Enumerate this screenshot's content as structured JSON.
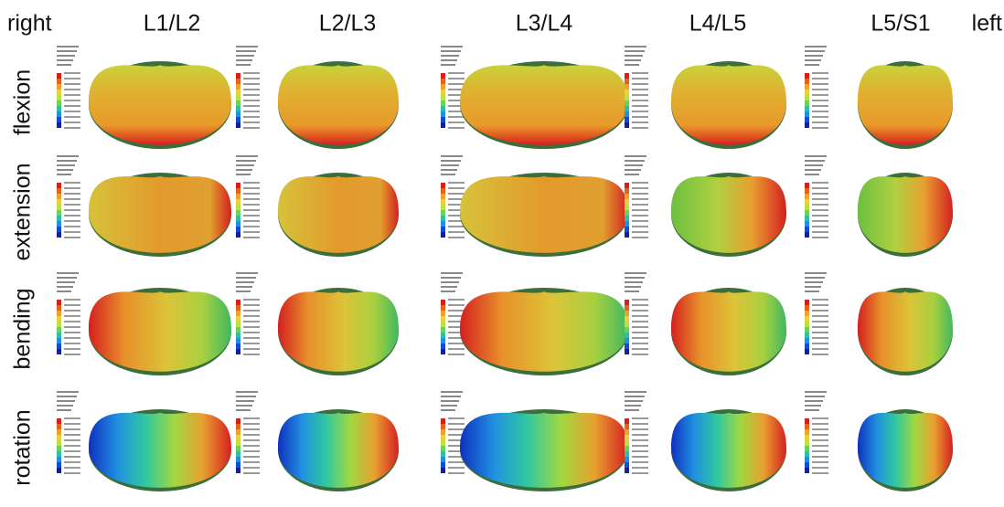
{
  "header": {
    "left_label": "right",
    "right_label": "left",
    "columns": [
      "L1/L2",
      "L2/L3",
      "L3/L4",
      "L4/L5",
      "L5/S1"
    ]
  },
  "rows": [
    "flexion",
    "extension",
    "bending",
    "rotation"
  ]
}
